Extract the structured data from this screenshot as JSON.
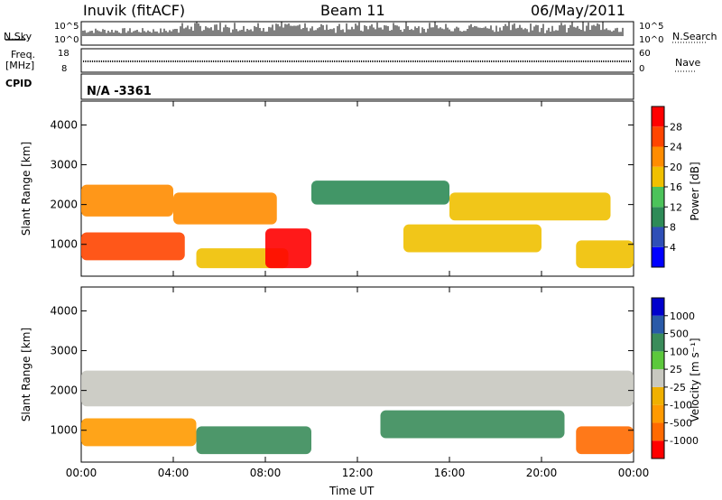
{
  "header": {
    "station": "Inuvik (fitACF)",
    "beam": "Beam 11",
    "date": "06/May/2011"
  },
  "strips": {
    "nsky_label": "N.Sky",
    "nsky_ticks": [
      "10^5",
      "10^0"
    ],
    "nsearch_label": "N.Search",
    "nsearch_ticks": [
      "10^5",
      "10^0"
    ],
    "freq_label_1": "Freq.",
    "freq_label_2": "[MHz]",
    "freq_ticks": [
      "18",
      "8"
    ],
    "nave_label": "Nave",
    "nave_ticks": [
      "60",
      "0"
    ],
    "cpid_label": "CPID",
    "cpid_value": "N/A -3361"
  },
  "colors": {
    "power": [
      "#0000ff",
      "#2f4fb7",
      "#2e8b57",
      "#4cc35a",
      "#f0c000",
      "#ff8c00",
      "#ff4500",
      "#ff0000"
    ],
    "velocity": [
      "#ff0000",
      "#ff6a00",
      "#ff9a00",
      "#f0b000",
      "#c8c8c0",
      "#5cc83c",
      "#3a8c5a",
      "#2a5aa8",
      "#0000cc"
    ]
  },
  "chart_data": [
    {
      "type": "heatmap",
      "name": "power",
      "ylabel": "Slant Range [km]",
      "yticks": [
        "1000",
        "2000",
        "3000",
        "4000"
      ],
      "ylim": [
        200,
        4600
      ],
      "xticks": [
        "00:00",
        "04:00",
        "08:00",
        "12:00",
        "16:00",
        "20:00",
        "00:00"
      ],
      "colorbar_label": "Power [dB]",
      "colorbar_ticks": [
        "4",
        "8",
        "12",
        "16",
        "20",
        "24",
        "28"
      ],
      "bands": [
        {
          "start": 0.0,
          "end": 4.0,
          "range": [
            1700,
            2500
          ],
          "level": 5
        },
        {
          "start": 0.0,
          "end": 4.5,
          "range": [
            600,
            1300
          ],
          "level": 6
        },
        {
          "start": 4.0,
          "end": 8.5,
          "range": [
            1500,
            2300
          ],
          "level": 5
        },
        {
          "start": 5.0,
          "end": 9.0,
          "range": [
            400,
            900
          ],
          "level": 4
        },
        {
          "start": 8.0,
          "end": 10.0,
          "range": [
            400,
            1400
          ],
          "level": 7
        },
        {
          "start": 10.0,
          "end": 16.0,
          "range": [
            2000,
            2600
          ],
          "level": 2
        },
        {
          "start": 14.0,
          "end": 20.0,
          "range": [
            800,
            1500
          ],
          "level": 4
        },
        {
          "start": 16.0,
          "end": 23.0,
          "range": [
            1600,
            2300
          ],
          "level": 4
        },
        {
          "start": 21.5,
          "end": 24.0,
          "range": [
            400,
            1100
          ],
          "level": 4
        }
      ]
    },
    {
      "type": "heatmap",
      "name": "velocity",
      "ylabel": "Slant Range [km]",
      "yticks": [
        "1000",
        "2000",
        "3000",
        "4000"
      ],
      "ylim": [
        200,
        4600
      ],
      "xticks": [
        "00:00",
        "04:00",
        "08:00",
        "12:00",
        "16:00",
        "20:00",
        "00:00"
      ],
      "xlabel": "Time UT",
      "colorbar_label": "Velocity [m s⁻¹]",
      "colorbar_ticks": [
        "-1000",
        "-500",
        "-100",
        "-25",
        "25",
        "100",
        "500",
        "1000"
      ],
      "bands": [
        {
          "start": 0.0,
          "end": 24.0,
          "range": [
            1600,
            2500
          ],
          "level": 4
        },
        {
          "start": 0.0,
          "end": 5.0,
          "range": [
            600,
            1300
          ],
          "level": 2
        },
        {
          "start": 5.0,
          "end": 10.0,
          "range": [
            400,
            1100
          ],
          "level": 6
        },
        {
          "start": 13.0,
          "end": 21.0,
          "range": [
            800,
            1500
          ],
          "level": 6
        },
        {
          "start": 21.5,
          "end": 24.0,
          "range": [
            400,
            1100
          ],
          "level": 1
        }
      ]
    }
  ]
}
